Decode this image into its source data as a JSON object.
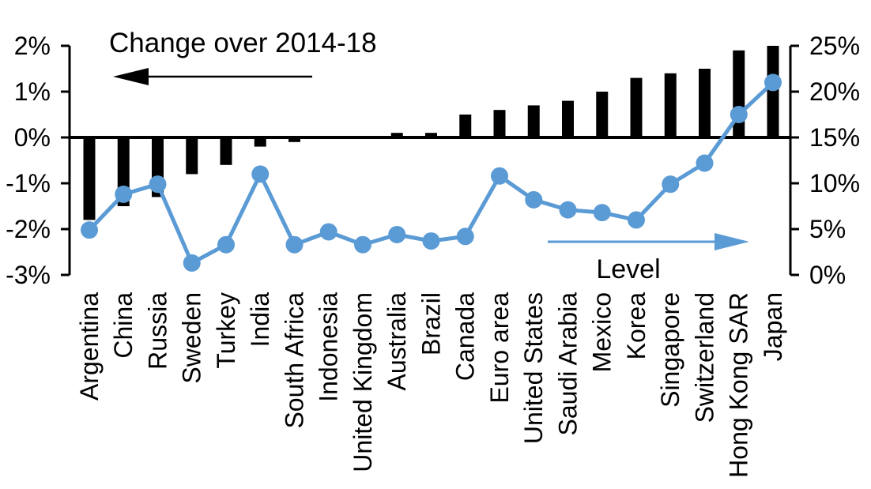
{
  "chart_data": {
    "type": "bar+line",
    "title": "Change over 2014-18",
    "categories": [
      "Argentina",
      "China",
      "Russia",
      "Sweden",
      "Turkey",
      "India",
      "South Africa",
      "Indonesia",
      "United Kingdom",
      "Australia",
      "Brazil",
      "Canada",
      "Euro area",
      "United States",
      "Saudi Arabia",
      "Mexico",
      "Korea",
      "Singapore",
      "Switzerland",
      "Hong Kong SAR",
      "Japan"
    ],
    "series": [
      {
        "name": "Change over 2014-18",
        "type": "bar",
        "axis": "left",
        "color": "#000000",
        "values": [
          -1.8,
          -1.5,
          -1.3,
          -0.8,
          -0.6,
          -0.2,
          -0.1,
          0,
          0,
          0.1,
          0.1,
          0.5,
          0.6,
          0.7,
          0.8,
          1.0,
          1.3,
          1.4,
          1.5,
          1.9,
          2.0
        ]
      },
      {
        "name": "Level",
        "type": "line",
        "axis": "right",
        "color": "#5B9BD5",
        "values": [
          4.9,
          8.8,
          9.9,
          1.3,
          3.3,
          11.0,
          3.3,
          4.7,
          3.3,
          4.4,
          3.7,
          4.2,
          10.8,
          8.2,
          7.1,
          6.8,
          6.0,
          9.9,
          12.2,
          17.5,
          21.0
        ]
      }
    ],
    "left_axis": {
      "range": [
        -3,
        2
      ],
      "tick_values": [
        2,
        1,
        0,
        -1,
        -2,
        -3
      ],
      "tick_labels": [
        "2%",
        "1%",
        "0%",
        "-1%",
        "-2%",
        "-3%"
      ]
    },
    "right_axis": {
      "range": [
        0,
        25
      ],
      "tick_values": [
        25,
        20,
        15,
        10,
        5,
        0
      ],
      "tick_labels": [
        "25%",
        "20%",
        "15%",
        "10%",
        "5%",
        "0%"
      ]
    },
    "annotations": [
      {
        "text": "Change over 2014-18",
        "arrow": "left",
        "color": "#000000"
      },
      {
        "text": "Level",
        "arrow": "right",
        "color": "#5B9BD5"
      }
    ],
    "grid": "off",
    "legend_position": "inside-plot-labels-with-arrows",
    "background": "#ffffff"
  }
}
